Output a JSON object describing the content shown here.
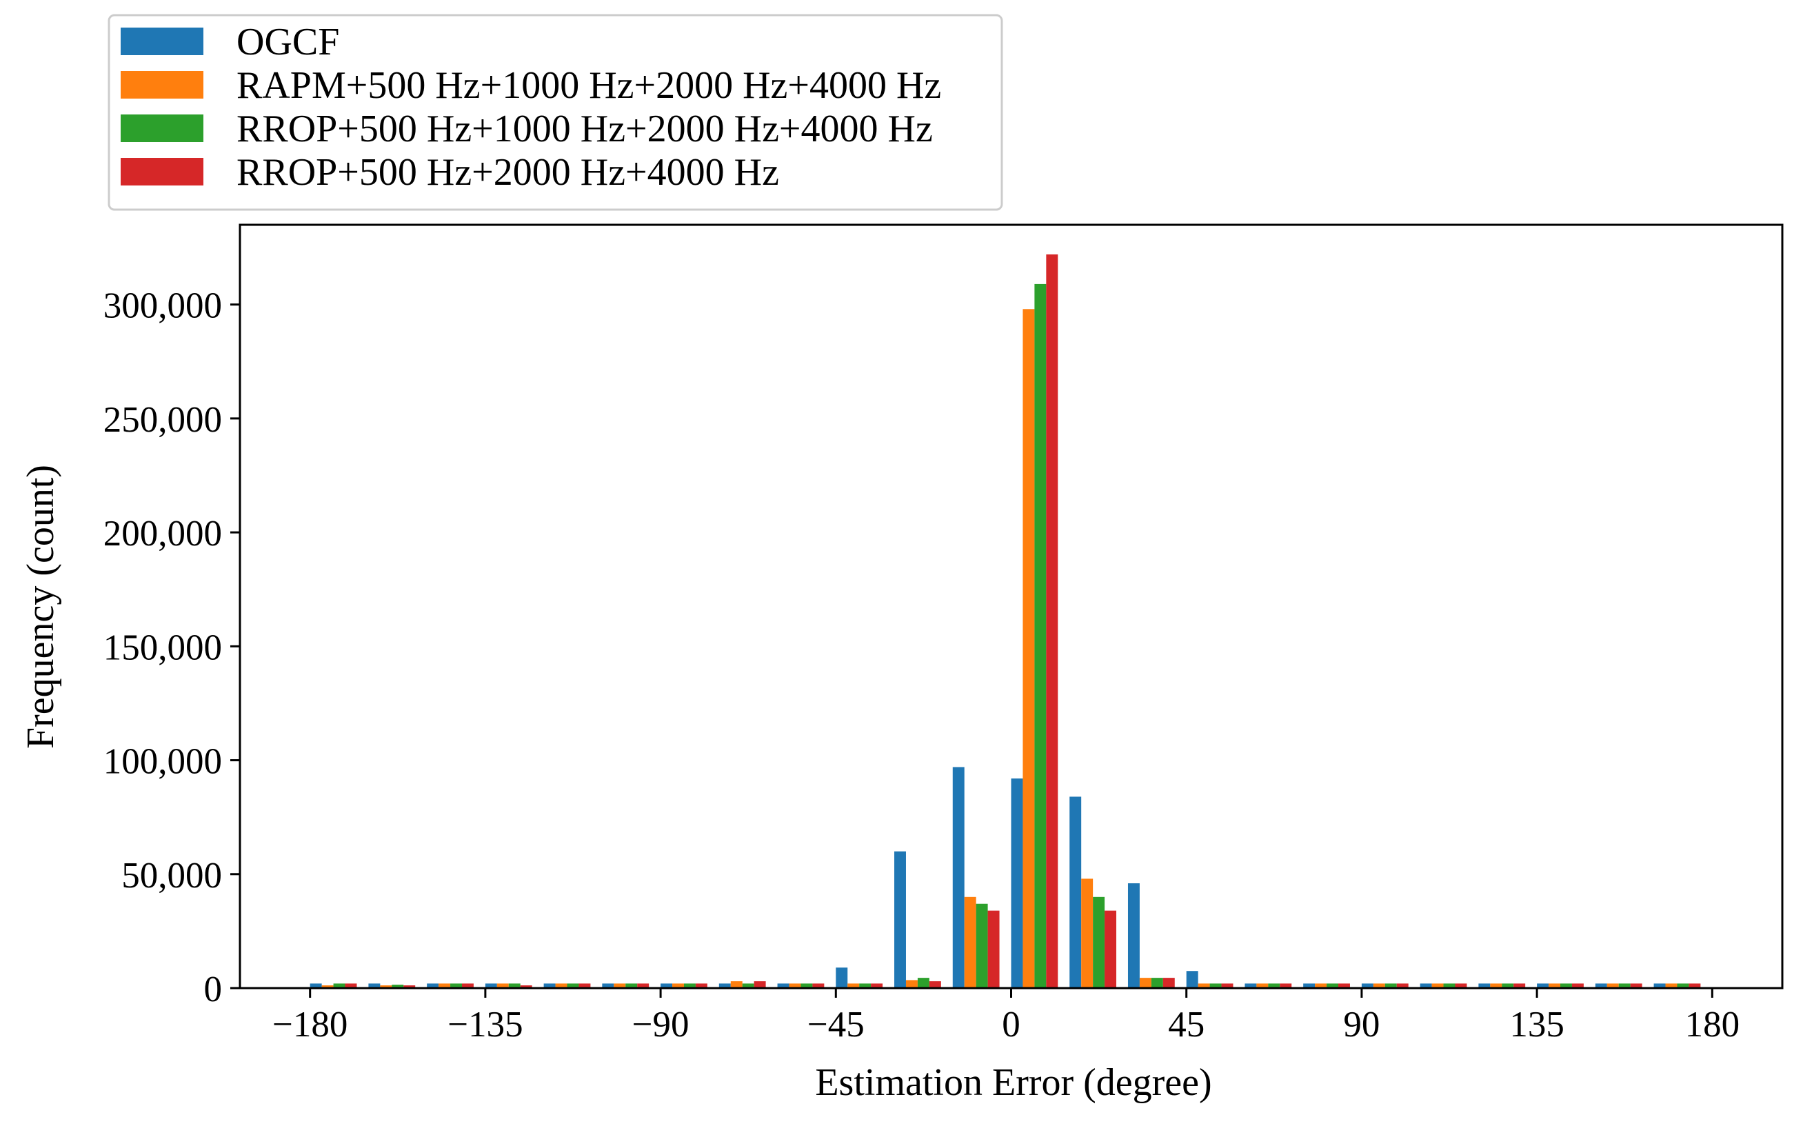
{
  "chart_data": {
    "type": "bar",
    "title": "",
    "xlabel": "Estimation Error (degree)",
    "ylabel": "Frequency (count)",
    "xlim": [
      -198,
      198
    ],
    "ylim": [
      0,
      335000
    ],
    "grid": false,
    "legend_position": "top-left, outside plot",
    "x_ticks": [
      -180,
      -135,
      -90,
      -45,
      0,
      45,
      90,
      135,
      180
    ],
    "x_tick_labels": [
      "−180",
      "−135",
      "−90",
      "−45",
      "0",
      "45",
      "90",
      "135",
      "180"
    ],
    "y_ticks": [
      0,
      50000,
      100000,
      150000,
      200000,
      250000,
      300000
    ],
    "y_tick_labels": [
      "0",
      "50,000",
      "100,000",
      "150,000",
      "200,000",
      "250,000",
      "300,000"
    ],
    "bin_width": 15,
    "x": [
      -180,
      -165,
      -150,
      -135,
      -120,
      -105,
      -90,
      -75,
      -60,
      -45,
      -30,
      -15,
      0,
      15,
      30,
      45,
      60,
      75,
      90,
      105,
      120,
      135,
      150,
      165
    ],
    "series": [
      {
        "name": "OGCF",
        "color": "#1f77b4",
        "values": [
          2000,
          2000,
          2000,
          2000,
          2000,
          2000,
          2000,
          2000,
          2000,
          9000,
          60000,
          97000,
          92000,
          84000,
          46000,
          7500,
          2000,
          2000,
          2000,
          2000,
          2000,
          2000,
          2000,
          2000
        ]
      },
      {
        "name": "RAPM+500 Hz+1000 Hz+2000 Hz+4000 Hz",
        "color": "#ff7f0e",
        "values": [
          1200,
          1200,
          2000,
          2000,
          2000,
          2000,
          2000,
          3000,
          2000,
          2000,
          3500,
          40000,
          298000,
          48000,
          4500,
          2000,
          2000,
          2000,
          2000,
          2000,
          2000,
          2000,
          2000,
          2000
        ]
      },
      {
        "name": "RROP+500 Hz+1000 Hz+2000 Hz+4000 Hz",
        "color": "#2ca02c",
        "values": [
          2000,
          1500,
          2000,
          2000,
          2000,
          2000,
          2000,
          2000,
          2000,
          2000,
          4500,
          37000,
          309000,
          40000,
          4500,
          2000,
          2000,
          2000,
          2000,
          2000,
          2000,
          2000,
          2000,
          2000
        ]
      },
      {
        "name": "RROP+500 Hz+2000 Hz+4000 Hz",
        "color": "#d62728",
        "values": [
          2000,
          1200,
          2000,
          1200,
          2000,
          2000,
          2000,
          3000,
          2000,
          2000,
          3000,
          34000,
          322000,
          34000,
          4500,
          2000,
          2000,
          2000,
          2000,
          2000,
          2000,
          2000,
          2000,
          2000
        ]
      }
    ]
  }
}
